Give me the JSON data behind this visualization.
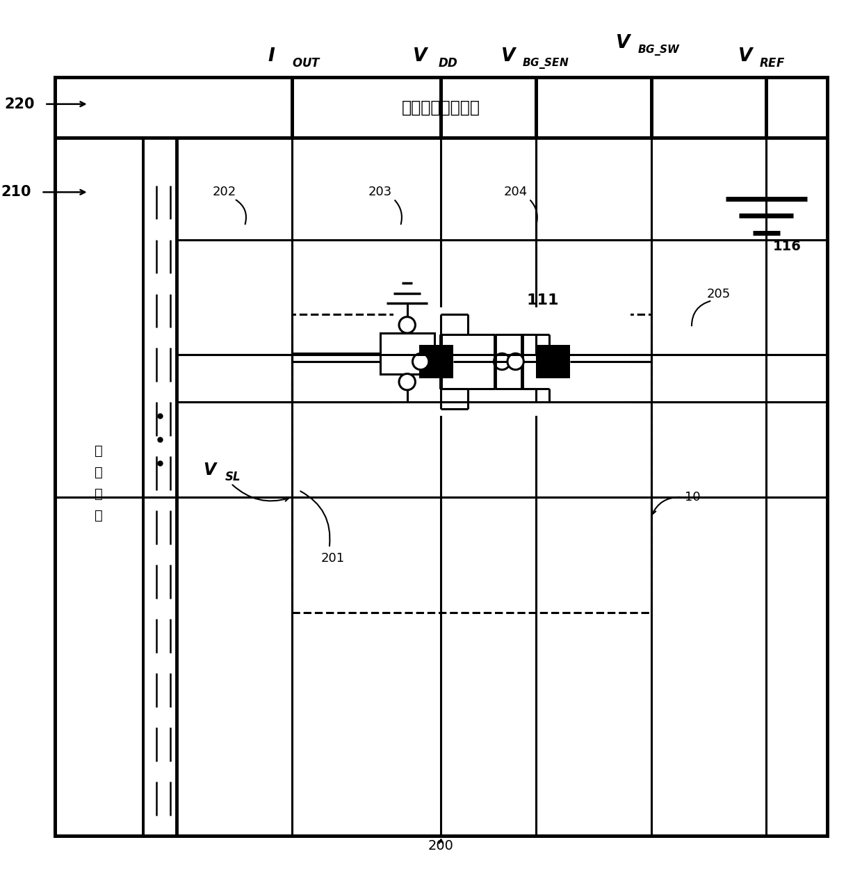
{
  "bg_color": "#ffffff",
  "fig_width": 12.4,
  "fig_height": 12.67,
  "title_chinese": "传感信号读出电路",
  "row_sel_chinese": "行\n选\n电\n路",
  "label_220": "220",
  "label_210": "210",
  "label_200": "200",
  "label_202": "202",
  "label_203": "203",
  "label_204": "204",
  "label_205": "205",
  "label_201": "201",
  "label_10": "10",
  "label_111": "111",
  "label_116": "116"
}
